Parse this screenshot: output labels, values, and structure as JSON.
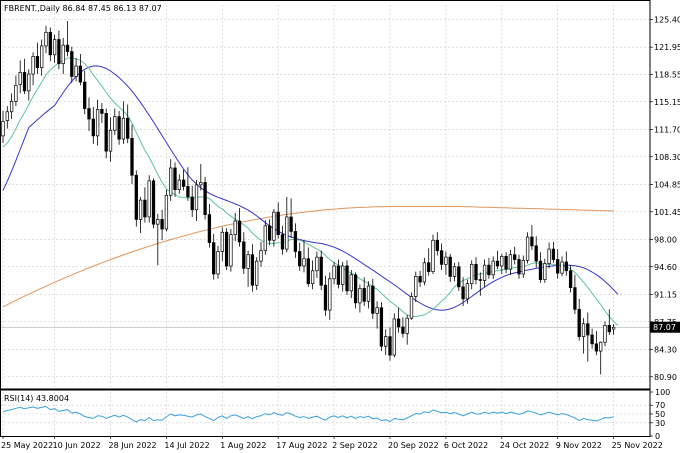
{
  "header": {
    "symbol_line": "FBRENT.,Daily  86.84 87.45 86.13 87.07",
    "rsi_line": "RSI(14) 43.8004",
    "current_price_label": "87.07"
  },
  "colors": {
    "background": "#ffffff",
    "grid": "#c8c8c8",
    "candle": "#000000",
    "ma_fast": "#5cc49a",
    "ma_mid": "#3535c8",
    "ma_slow": "#e0955a",
    "rsi": "#3aa0e0",
    "price_tag_bg": "#000000",
    "price_tag_text": "#ffffff"
  },
  "chart_data": [
    {
      "type": "candlestick",
      "title": "FBRENT.,Daily",
      "price_axis_ticks": [
        "125.40",
        "121.95",
        "118.55",
        "115.15",
        "111.70",
        "108.30",
        "104.85",
        "101.45",
        "98.00",
        "94.60",
        "91.15",
        "87.75",
        "84.30",
        "80.90"
      ],
      "date_axis_ticks": [
        "25 May 2022",
        "10 Jun 2022",
        "28 Jun 2022",
        "14 Jul 2022",
        "1 Aug 2022",
        "17 Aug 2022",
        "2 Sep 2022",
        "20 Sep 2022",
        "6 Oct 2022",
        "24 Oct 2022",
        "9 Nov 2022",
        "25 Nov 2022"
      ],
      "date_tick_bar_index": [
        0,
        12,
        25,
        38,
        51,
        64,
        77,
        90,
        103,
        116,
        129,
        142
      ],
      "ylim": [
        79.5,
        127.2
      ],
      "grid": true,
      "last_price": 87.07,
      "ohlc": [
        [
          110.9,
          114.0,
          110.0,
          112.7
        ],
        [
          112.8,
          114.6,
          111.8,
          113.9
        ],
        [
          113.9,
          116.2,
          113.0,
          115.2
        ],
        [
          115.2,
          118.4,
          114.6,
          117.2
        ],
        [
          117.3,
          120.3,
          116.2,
          118.8
        ],
        [
          118.8,
          120.5,
          116.1,
          116.5
        ],
        [
          116.5,
          119.2,
          115.3,
          118.6
        ],
        [
          118.6,
          121.3,
          117.2,
          120.8
        ],
        [
          120.8,
          122.5,
          118.6,
          119.4
        ],
        [
          119.4,
          122.9,
          118.4,
          122.1
        ],
        [
          122.1,
          124.6,
          121.2,
          123.8
        ],
        [
          123.8,
          124.4,
          120.2,
          121.0
        ],
        [
          121.0,
          123.5,
          120.0,
          122.9
        ],
        [
          122.9,
          124.0,
          119.2,
          119.9
        ],
        [
          119.9,
          123.1,
          118.6,
          122.2
        ],
        [
          122.2,
          125.2,
          120.8,
          121.4
        ],
        [
          121.4,
          122.0,
          117.5,
          118.3
        ],
        [
          118.3,
          120.6,
          117.7,
          119.6
        ],
        [
          119.6,
          121.1,
          117.2,
          117.6
        ],
        [
          117.6,
          119.0,
          113.6,
          114.3
        ],
        [
          114.3,
          115.7,
          111.5,
          113.0
        ],
        [
          113.0,
          114.5,
          109.9,
          110.9
        ],
        [
          110.9,
          115.4,
          109.7,
          114.2
        ],
        [
          114.2,
          115.0,
          112.5,
          113.7
        ],
        [
          113.7,
          114.3,
          108.1,
          109.0
        ],
        [
          109.0,
          113.2,
          107.7,
          111.6
        ],
        [
          111.6,
          114.3,
          111.0,
          113.3
        ],
        [
          113.3,
          114.0,
          109.8,
          110.5
        ],
        [
          110.5,
          115.2,
          109.9,
          113.1
        ],
        [
          113.1,
          114.8,
          110.0,
          110.6
        ],
        [
          110.6,
          112.3,
          104.9,
          106.0
        ],
        [
          106.0,
          106.6,
          99.6,
          100.5
        ],
        [
          100.5,
          103.3,
          98.8,
          102.9
        ],
        [
          102.9,
          104.5,
          100.1,
          100.8
        ],
        [
          100.8,
          106.0,
          100.1,
          105.3
        ],
        [
          105.3,
          105.6,
          99.4,
          99.9
        ],
        [
          99.9,
          101.2,
          94.8,
          100.5
        ],
        [
          100.5,
          101.7,
          97.9,
          99.3
        ],
        [
          99.3,
          104.2,
          99.0,
          103.5
        ],
        [
          103.5,
          108.0,
          102.8,
          106.9
        ],
        [
          106.9,
          107.6,
          103.3,
          104.2
        ],
        [
          104.2,
          106.1,
          103.7,
          105.4
        ],
        [
          105.4,
          106.7,
          104.1,
          104.6
        ],
        [
          104.6,
          107.0,
          102.8,
          103.3
        ],
        [
          103.3,
          104.7,
          100.8,
          101.7
        ],
        [
          101.7,
          105.4,
          100.3,
          104.8
        ],
        [
          104.8,
          107.4,
          104.1,
          105.1
        ],
        [
          105.1,
          105.8,
          100.5,
          101.1
        ],
        [
          101.1,
          102.4,
          97.0,
          97.6
        ],
        [
          97.6,
          98.7,
          93.0,
          93.7
        ],
        [
          93.7,
          97.2,
          93.1,
          96.5
        ],
        [
          96.5,
          99.5,
          95.3,
          98.9
        ],
        [
          98.9,
          99.4,
          94.2,
          94.7
        ],
        [
          94.7,
          99.3,
          94.0,
          98.6
        ],
        [
          98.6,
          101.3,
          97.8,
          100.3
        ],
        [
          100.3,
          101.9,
          97.1,
          97.7
        ],
        [
          97.7,
          98.9,
          93.7,
          94.4
        ],
        [
          94.4,
          96.6,
          92.1,
          96.1
        ],
        [
          96.1,
          97.4,
          91.5,
          92.3
        ],
        [
          92.3,
          95.8,
          91.7,
          95.3
        ],
        [
          95.3,
          97.7,
          94.6,
          96.6
        ],
        [
          96.6,
          100.4,
          96.1,
          99.7
        ],
        [
          99.7,
          100.5,
          97.3,
          97.9
        ],
        [
          97.9,
          101.8,
          97.1,
          101.4
        ],
        [
          101.4,
          102.6,
          98.1,
          98.6
        ],
        [
          98.6,
          99.7,
          96.1,
          96.8
        ],
        [
          96.8,
          103.3,
          96.4,
          100.8
        ],
        [
          100.8,
          103.1,
          98.2,
          99.0
        ],
        [
          99.0,
          100.0,
          95.7,
          96.5
        ],
        [
          96.5,
          97.6,
          94.1,
          94.7
        ],
        [
          94.7,
          97.9,
          93.9,
          95.6
        ],
        [
          95.6,
          97.0,
          92.1,
          92.5
        ],
        [
          92.5,
          95.4,
          91.8,
          94.1
        ],
        [
          94.1,
          96.5,
          93.2,
          95.8
        ],
        [
          95.8,
          96.6,
          91.7,
          92.3
        ],
        [
          92.3,
          93.5,
          88.5,
          89.2
        ],
        [
          89.2,
          93.9,
          88.0,
          93.1
        ],
        [
          93.1,
          95.2,
          92.4,
          94.7
        ],
        [
          94.7,
          95.5,
          91.9,
          92.4
        ],
        [
          92.4,
          95.2,
          91.5,
          94.7
        ],
        [
          94.7,
          95.4,
          91.1,
          91.6
        ],
        [
          91.6,
          94.2,
          90.7,
          93.6
        ],
        [
          93.6,
          93.9,
          89.4,
          90.1
        ],
        [
          90.1,
          92.4,
          88.9,
          91.9
        ],
        [
          91.9,
          93.3,
          89.7,
          90.3
        ],
        [
          90.3,
          92.8,
          89.4,
          92.2
        ],
        [
          92.2,
          93.1,
          88.1,
          88.8
        ],
        [
          88.8,
          90.3,
          86.9,
          89.5
        ],
        [
          89.5,
          90.2,
          84.1,
          84.7
        ],
        [
          84.7,
          86.8,
          83.6,
          85.9
        ],
        [
          85.9,
          87.0,
          82.9,
          83.6
        ],
        [
          83.6,
          88.8,
          83.3,
          88.1
        ],
        [
          88.1,
          89.5,
          86.4,
          87.1
        ],
        [
          87.1,
          88.3,
          85.8,
          86.3
        ],
        [
          86.3,
          88.6,
          84.9,
          88.2
        ],
        [
          88.2,
          91.4,
          88.0,
          90.9
        ],
        [
          90.9,
          94.0,
          90.2,
          93.4
        ],
        [
          93.4,
          94.1,
          92.1,
          92.7
        ],
        [
          92.7,
          95.7,
          92.3,
          95.1
        ],
        [
          95.1,
          96.9,
          93.5,
          94.0
        ],
        [
          94.0,
          98.6,
          93.7,
          97.9
        ],
        [
          97.9,
          98.9,
          96.0,
          96.6
        ],
        [
          96.6,
          97.5,
          94.2,
          94.9
        ],
        [
          94.9,
          96.5,
          93.6,
          95.8
        ],
        [
          95.8,
          96.2,
          92.7,
          93.4
        ],
        [
          93.4,
          95.1,
          92.8,
          94.6
        ],
        [
          94.6,
          95.2,
          91.6,
          92.1
        ],
        [
          92.1,
          93.3,
          89.7,
          90.6
        ],
        [
          90.6,
          93.0,
          90.0,
          92.5
        ],
        [
          92.5,
          95.4,
          91.8,
          94.9
        ],
        [
          94.9,
          95.8,
          92.4,
          93.0
        ],
        [
          93.0,
          93.9,
          91.0,
          92.9
        ],
        [
          92.9,
          95.5,
          92.1,
          94.8
        ],
        [
          94.8,
          95.7,
          93.1,
          93.6
        ],
        [
          93.6,
          95.9,
          93.1,
          95.3
        ],
        [
          95.3,
          96.6,
          94.3,
          94.7
        ],
        [
          94.7,
          96.2,
          93.7,
          95.9
        ],
        [
          95.9,
          96.4,
          93.8,
          94.3
        ],
        [
          94.3,
          96.7,
          93.6,
          96.1
        ],
        [
          96.1,
          97.1,
          94.9,
          95.5
        ],
        [
          95.5,
          96.1,
          93.1,
          93.7
        ],
        [
          93.7,
          96.0,
          93.2,
          95.4
        ],
        [
          95.4,
          98.9,
          95.0,
          98.3
        ],
        [
          98.3,
          99.8,
          96.7,
          97.2
        ],
        [
          97.2,
          98.4,
          94.5,
          95.3
        ],
        [
          95.3,
          96.4,
          92.6,
          93.0
        ],
        [
          93.0,
          95.6,
          92.6,
          95.0
        ],
        [
          95.0,
          97.6,
          94.4,
          96.8
        ],
        [
          96.8,
          97.7,
          95.1,
          95.5
        ],
        [
          95.5,
          96.8,
          93.1,
          93.8
        ],
        [
          93.8,
          95.9,
          93.4,
          95.2
        ],
        [
          95.2,
          96.5,
          93.5,
          94.1
        ],
        [
          94.1,
          94.8,
          91.4,
          92.0
        ],
        [
          92.0,
          93.6,
          88.7,
          89.3
        ],
        [
          89.3,
          90.6,
          85.4,
          85.9
        ],
        [
          85.9,
          88.2,
          83.8,
          87.5
        ],
        [
          87.5,
          88.9,
          82.8,
          86.1
        ],
        [
          86.1,
          86.9,
          84.4,
          85.0
        ],
        [
          85.0,
          86.6,
          83.6,
          84.1
        ],
        [
          84.1,
          85.3,
          81.2,
          85.2
        ],
        [
          85.2,
          87.8,
          84.7,
          87.3
        ],
        [
          87.3,
          89.3,
          86.1,
          86.5
        ],
        [
          86.84,
          87.45,
          86.13,
          87.07
        ]
      ],
      "ma_fast": [
        109.5,
        110.0,
        110.8,
        111.8,
        112.9,
        113.8,
        114.8,
        115.8,
        116.7,
        117.6,
        118.5,
        119.1,
        119.6,
        120.0,
        120.3,
        120.6,
        120.6,
        120.5,
        120.3,
        119.9,
        119.3,
        118.5,
        117.8,
        117.1,
        116.3,
        115.6,
        115.0,
        114.5,
        114.0,
        113.4,
        112.5,
        111.3,
        110.2,
        109.1,
        108.2,
        107.2,
        106.1,
        105.1,
        104.3,
        103.9,
        103.6,
        103.3,
        103.2,
        103.2,
        103.1,
        103.2,
        103.3,
        103.3,
        103.1,
        102.6,
        102.1,
        101.8,
        101.3,
        100.9,
        100.5,
        100.2,
        99.8,
        99.4,
        98.8,
        98.3,
        97.9,
        97.6,
        97.5,
        97.5,
        97.6,
        97.6,
        97.8,
        98.0,
        98.0,
        97.9,
        97.7,
        97.4,
        97.1,
        96.8,
        96.5,
        96.0,
        95.5,
        95.1,
        94.8,
        94.4,
        94.1,
        93.8,
        93.5,
        93.1,
        92.8,
        92.5,
        92.1,
        91.8,
        91.3,
        90.8,
        90.3,
        89.9,
        89.5,
        89.0,
        88.6,
        88.4,
        88.4,
        88.5,
        88.6,
        88.9,
        89.3,
        89.8,
        90.3,
        90.8,
        91.4,
        92.1,
        92.6,
        92.9,
        93.1,
        93.4,
        93.6,
        93.7,
        93.8,
        93.9,
        94.0,
        94.1,
        94.2,
        94.3,
        94.4,
        94.5,
        94.6,
        94.6,
        94.8,
        95.0,
        95.1,
        95.0,
        94.9,
        94.9,
        94.9,
        94.8,
        94.7,
        94.6,
        94.3,
        93.9,
        93.3,
        92.7,
        92.0,
        91.3,
        90.6,
        89.9,
        89.1,
        88.4,
        87.8,
        87.3
      ]
    },
    {
      "type": "line",
      "title": "RSI(14) 43.8004",
      "ylim": [
        0,
        100
      ],
      "tick_labels": [
        "100",
        "70",
        "50",
        "30",
        "0"
      ],
      "levels": [
        30,
        50,
        70
      ],
      "last_value": 43.8004,
      "values": [
        55,
        58,
        60,
        63,
        65,
        62,
        64,
        66,
        63,
        65,
        67,
        60,
        62,
        56,
        58,
        60,
        52,
        54,
        50,
        44,
        42,
        40,
        46,
        45,
        40,
        44,
        47,
        43,
        47,
        43,
        37,
        32,
        37,
        35,
        42,
        35,
        37,
        36,
        44,
        50,
        46,
        48,
        47,
        45,
        43,
        48,
        50,
        44,
        40,
        35,
        42,
        46,
        40,
        46,
        48,
        44,
        40,
        44,
        39,
        44,
        46,
        51,
        48,
        53,
        49,
        47,
        53,
        50,
        45,
        42,
        44,
        40,
        43,
        45,
        40,
        36,
        43,
        46,
        42,
        46,
        41,
        45,
        40,
        44,
        42,
        45,
        39,
        41,
        35,
        37,
        33,
        40,
        38,
        37,
        41,
        46,
        51,
        50,
        55,
        53,
        59,
        56,
        53,
        54,
        51,
        53,
        50,
        46,
        50,
        54,
        50,
        50,
        54,
        51,
        54,
        52,
        54,
        51,
        54,
        52,
        49,
        52,
        57,
        55,
        52,
        48,
        51,
        54,
        51,
        48,
        51,
        49,
        45,
        41,
        35,
        40,
        37,
        36,
        34,
        38,
        42,
        41,
        43.8
      ]
    }
  ]
}
